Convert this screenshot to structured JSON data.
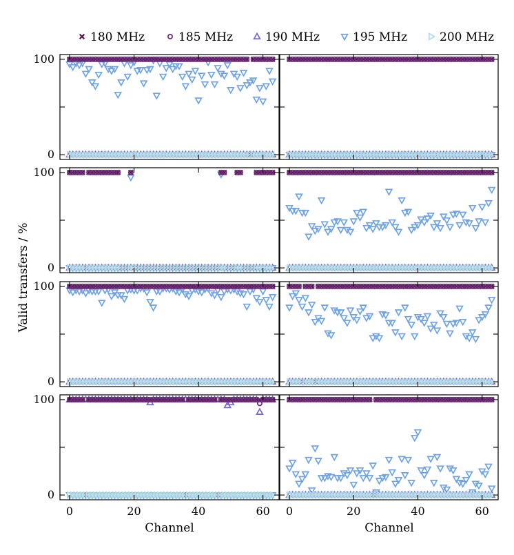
{
  "colors": {
    "180 MHz": "#5b1a4f",
    "185 MHz": "#6b2a7a",
    "190 MHz": "#7866c8",
    "195 MHz": "#6fa3e3",
    "200 MHz": "#b3dbe6"
  },
  "chart_data": {
    "type": "scatter",
    "layout": "4 rows x 2 columns, shared x and y axes",
    "xlabel": "Channel",
    "ylabel": "Valid transfers / %",
    "xlim": [
      -3,
      65
    ],
    "ylim": [
      -5,
      105
    ],
    "xticks": [
      0,
      20,
      40,
      60
    ],
    "yticks": [
      0,
      100
    ],
    "legend": {
      "placement": "top, above panels",
      "entries": [
        {
          "label": "180 MHz",
          "marker": "x"
        },
        {
          "label": "185 MHz",
          "marker": "circle"
        },
        {
          "label": "190 MHz",
          "marker": "triangle-up"
        },
        {
          "label": "195 MHz",
          "marker": "triangle-down"
        },
        {
          "label": "200 MHz",
          "marker": "triangle-right"
        }
      ]
    },
    "channels": "0-63",
    "panels": [
      {
        "row": 1,
        "col": 1,
        "series": [
          {
            "name": "180 MHz",
            "default": 100,
            "overrides": {
              "56": 0
            }
          },
          {
            "name": "185 MHz",
            "default": 100,
            "overrides": {
              "56": 0
            }
          },
          {
            "name": "190 MHz",
            "default": 0
          },
          {
            "name": "195 MHz",
            "values": [
              95,
              92,
              96,
              94,
              96,
              85,
              90,
              76,
              72,
              84,
              95,
              96,
              90,
              88,
              90,
              63,
              76,
              96,
              82,
              94,
              97,
              88,
              89,
              75,
              89,
              90,
              99,
              62,
              96,
              82,
              91,
              95,
              90,
              93,
              93,
              82,
              72,
              85,
              79,
              88,
              57,
              83,
              74,
              97,
              84,
              74,
              91,
              85,
              83,
              94,
              68,
              85,
              82,
              70,
              86,
              73,
              76,
              78,
              58,
              70,
              56,
              72,
              88,
              77
            ]
          },
          {
            "name": "200 MHz",
            "default": 0
          }
        ]
      },
      {
        "row": 1,
        "col": 2,
        "series": [
          {
            "name": "180 MHz",
            "default": 100
          },
          {
            "name": "185 MHz",
            "default": 100
          },
          {
            "name": "190 MHz",
            "default": 0
          },
          {
            "name": "195 MHz",
            "default": 0
          },
          {
            "name": "200 MHz",
            "default": 0
          }
        ]
      },
      {
        "row": 2,
        "col": 1,
        "series": [
          {
            "name": "180 MHz",
            "default": 100,
            "overrides": {
              "5": 0,
              "16": 0,
              "17": 0,
              "18": 0,
              "20": 0,
              "21": 0,
              "22": 0,
              "23": 0,
              "24": 0,
              "25": 0,
              "26": 0,
              "27": 0,
              "28": 0,
              "29": 0,
              "30": 0,
              "31": 0,
              "32": 0,
              "33": 0,
              "34": 0,
              "35": 0,
              "36": 0,
              "37": 0,
              "38": 0,
              "39": 0,
              "40": 0,
              "41": 0,
              "42": 0,
              "43": 0,
              "44": 0,
              "45": 0,
              "46": 0,
              "49": 0,
              "50": 0,
              "51": 0,
              "54": 0,
              "55": 0,
              "56": 0,
              "57": 0
            }
          },
          {
            "name": "185 MHz",
            "default": 100,
            "overrides": {
              "5": 0,
              "16": 0,
              "17": 0,
              "18": 0,
              "20": 0,
              "21": 0,
              "22": 0,
              "23": 0,
              "24": 0,
              "25": 0,
              "26": 0,
              "27": 0,
              "28": 0,
              "29": 0,
              "30": 0,
              "31": 0,
              "32": 0,
              "33": 0,
              "34": 0,
              "35": 0,
              "36": 0,
              "37": 0,
              "38": 0,
              "39": 0,
              "40": 0,
              "41": 0,
              "42": 0,
              "43": 0,
              "44": 0,
              "45": 0,
              "46": 0,
              "49": 0,
              "50": 0,
              "51": 0,
              "54": 0,
              "55": 0,
              "56": 0,
              "57": 0
            }
          },
          {
            "name": "190 MHz",
            "default": 0
          },
          {
            "name": "195 MHz",
            "default": 0,
            "overrides": {
              "19": 95,
              "47": 98
            }
          },
          {
            "name": "200 MHz",
            "default": 0
          }
        ]
      },
      {
        "row": 2,
        "col": 2,
        "series": [
          {
            "name": "180 MHz",
            "default": 100
          },
          {
            "name": "185 MHz",
            "default": 100
          },
          {
            "name": "190 MHz",
            "default": 0
          },
          {
            "name": "195 MHz",
            "values": [
              63,
              60,
              60,
              75,
              58,
              58,
              33,
              44,
              39,
              41,
              71,
              46,
              38,
              41,
              48,
              49,
              40,
              48,
              40,
              38,
              49,
              58,
              53,
              59,
              42,
              45,
              41,
              47,
              43,
              43,
              45,
              80,
              48,
              43,
              38,
              71,
              58,
              59,
              40,
              43,
              45,
              51,
              48,
              52,
              55,
              43,
              47,
              42,
              54,
              50,
              43,
              56,
              57,
              45,
              56,
              48,
              47,
              63,
              42,
              49,
              64,
              48,
              68,
              82
            ]
          },
          {
            "name": "200 MHz",
            "default": 0
          }
        ]
      },
      {
        "row": 3,
        "col": 1,
        "series": [
          {
            "name": "180 MHz",
            "default": 100
          },
          {
            "name": "185 MHz",
            "default": 100
          },
          {
            "name": "190 MHz",
            "default": 0
          },
          {
            "name": "195 MHz",
            "values": [
              96,
              94,
              96,
              95,
              96,
              93,
              96,
              95,
              95,
              95,
              83,
              96,
              97,
              90,
              94,
              91,
              91,
              87,
              96,
              97,
              96,
              96,
              98,
              98,
              94,
              84,
              78,
              95,
              95,
              98,
              98,
              97,
              98,
              95,
              94,
              97,
              92,
              90,
              96,
              97,
              95,
              94,
              97,
              98,
              93,
              91,
              96,
              89,
              95,
              97,
              96,
              97,
              95,
              93,
              92,
              79,
              95,
              97,
              88,
              84,
              95,
              86,
              79,
              89
            ]
          },
          {
            "name": "200 MHz",
            "default": 0
          }
        ]
      },
      {
        "row": 3,
        "col": 2,
        "series": [
          {
            "name": "180 MHz",
            "default": 100,
            "overrides": {
              "4": 0,
              "8": 0
            }
          },
          {
            "name": "185 MHz",
            "default": 100,
            "overrides": {
              "4": 0,
              "8": 0
            }
          },
          {
            "name": "190 MHz",
            "default": 0
          },
          {
            "name": "195 MHz",
            "values": [
              78,
              90,
              93,
              86,
              79,
              88,
              73,
              81,
              63,
              67,
              64,
              78,
              51,
              49,
              75,
              73,
              73,
              67,
              62,
              75,
              68,
              65,
              74,
              78,
              67,
              69,
              46,
              48,
              46,
              71,
              70,
              62,
              62,
              52,
              73,
              48,
              78,
              66,
              60,
              48,
              68,
              66,
              62,
              69,
              56,
              60,
              54,
              72,
              68,
              61,
              51,
              61,
              62,
              77,
              63,
              48,
              46,
              52,
              45,
              65,
              68,
              71,
              78,
              86
            ]
          },
          {
            "name": "200 MHz",
            "default": 0
          }
        ]
      },
      {
        "row": 4,
        "col": 1,
        "series": [
          {
            "name": "180 MHz",
            "default": 100,
            "overrides": {
              "5": 0,
              "36": 0,
              "46": 0
            }
          },
          {
            "name": "185 MHz",
            "default": 100,
            "overrides": {
              "5": 0,
              "36": 0,
              "46": 0,
              "59": 96
            }
          },
          {
            "name": "190 MHz",
            "default": 100,
            "overrides": {
              "25": 97,
              "49": 94,
              "50": 97,
              "59": 87
            }
          },
          {
            "name": "195 MHz",
            "default": 0
          },
          {
            "name": "200 MHz",
            "default": 0
          }
        ]
      },
      {
        "row": 4,
        "col": 2,
        "series": [
          {
            "name": "180 MHz",
            "default": 100,
            "overrides": {
              "26": 0
            }
          },
          {
            "name": "185 MHz",
            "default": 100,
            "overrides": {
              "26": 0
            }
          },
          {
            "name": "190 MHz",
            "default": 0
          },
          {
            "name": "195 MHz",
            "values": [
              28,
              34,
              22,
              12,
              17,
              22,
              37,
              5,
              49,
              36,
              18,
              18,
              20,
              19,
              40,
              18,
              18,
              23,
              21,
              26,
              11,
              23,
              26,
              18,
              23,
              18,
              31,
              3,
              15,
              18,
              19,
              37,
              24,
              12,
              16,
              38,
              21,
              37,
              13,
              60,
              66,
              26,
              21,
              27,
              38,
              13,
              40,
              28,
              8,
              6,
              28,
              26,
              17,
              13,
              12,
              16,
              22,
              3,
              12,
              10,
              25,
              22,
              30,
              7
            ]
          },
          {
            "name": "200 MHz",
            "default": 0
          }
        ]
      }
    ]
  }
}
